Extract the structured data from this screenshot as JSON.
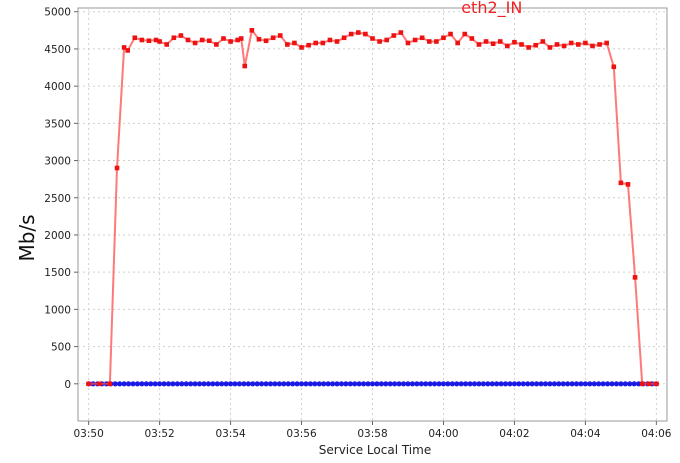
{
  "chart_data": {
    "type": "line",
    "title": "",
    "xlabel": "Service Local Time",
    "ylabel": "Mb/s",
    "x_ticks": [
      "03:50",
      "03:52",
      "03:54",
      "03:56",
      "03:58",
      "04:00",
      "04:02",
      "04:04",
      "04:06"
    ],
    "y_ticks": [
      0,
      500,
      1000,
      1500,
      2000,
      2500,
      3000,
      3500,
      4000,
      4500,
      5000
    ],
    "xlim": [
      "03:49.7",
      "04:06.3"
    ],
    "ylim": [
      -500,
      5050
    ],
    "grid": true,
    "series": [
      {
        "name": "eth2_IN",
        "color": "#ff4c4c",
        "marker_color": "#ee1111",
        "x": [
          "03:50.0",
          "03:50.3",
          "03:50.6",
          "03:50.8",
          "03:51.0",
          "03:51.1",
          "03:51.3",
          "03:51.5",
          "03:51.7",
          "03:51.9",
          "03:52.0",
          "03:52.2",
          "03:52.4",
          "03:52.6",
          "03:52.8",
          "03:53.0",
          "03:53.2",
          "03:53.4",
          "03:53.6",
          "03:53.8",
          "03:54.0",
          "03:54.2",
          "03:54.3",
          "03:54.4",
          "03:54.6",
          "03:54.8",
          "03:55.0",
          "03:55.2",
          "03:55.4",
          "03:55.6",
          "03:55.8",
          "03:56.0",
          "03:56.2",
          "03:56.4",
          "03:56.6",
          "03:56.8",
          "03:57.0",
          "03:57.2",
          "03:57.4",
          "03:57.6",
          "03:57.8",
          "03:58.0",
          "03:58.2",
          "03:58.4",
          "03:58.6",
          "03:58.8",
          "03:59.0",
          "03:59.2",
          "03:59.4",
          "03:59.6",
          "03:59.8",
          "04:00.0",
          "04:00.2",
          "04:00.4",
          "04:00.6",
          "04:00.8",
          "04:01.0",
          "04:01.2",
          "04:01.4",
          "04:01.6",
          "04:01.8",
          "04:02.0",
          "04:02.2",
          "04:02.4",
          "04:02.6",
          "04:02.8",
          "04:03.0",
          "04:03.2",
          "04:03.4",
          "04:03.6",
          "04:03.8",
          "04:04.0",
          "04:04.2",
          "04:04.4",
          "04:04.6",
          "04:04.8",
          "04:05.0",
          "04:05.2",
          "04:05.4",
          "04:05.6",
          "04:05.8",
          "04:06.0"
        ],
        "values": [
          0,
          0,
          0,
          2900,
          4520,
          4480,
          4650,
          4620,
          4610,
          4620,
          4600,
          4560,
          4650,
          4680,
          4620,
          4580,
          4620,
          4610,
          4560,
          4640,
          4600,
          4620,
          4640,
          4270,
          4750,
          4630,
          4610,
          4650,
          4680,
          4560,
          4580,
          4520,
          4550,
          4580,
          4580,
          4620,
          4600,
          4650,
          4700,
          4720,
          4700,
          4640,
          4600,
          4620,
          4680,
          4720,
          4580,
          4620,
          4650,
          4600,
          4600,
          4650,
          4700,
          4580,
          4700,
          4640,
          4560,
          4600,
          4570,
          4600,
          4540,
          4590,
          4560,
          4520,
          4550,
          4600,
          4520,
          4560,
          4540,
          4580,
          4560,
          4580,
          4540,
          4560,
          4580,
          4260,
          2700,
          2680,
          1430,
          0,
          0,
          0
        ]
      },
      {
        "name": "",
        "color": "#3333ee",
        "marker_color": "#1a1ae6",
        "x": [
          "03:50.0",
          "04:06.0"
        ],
        "values": [
          0,
          0
        ],
        "marker_step_minutes": 0.125
      }
    ],
    "annotations": [
      {
        "text": "eth2_IN",
        "x": "04:00.5",
        "y": 4980,
        "color": "#ee2222"
      }
    ]
  }
}
